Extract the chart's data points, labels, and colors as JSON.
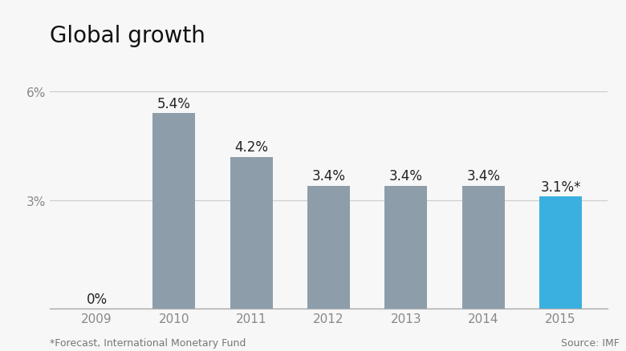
{
  "title": "Global growth",
  "categories": [
    "2009",
    "2010",
    "2011",
    "2012",
    "2013",
    "2014",
    "2015"
  ],
  "values": [
    0.0,
    5.4,
    4.2,
    3.4,
    3.4,
    3.4,
    3.1
  ],
  "labels": [
    "0%",
    "5.4%",
    "4.2%",
    "3.4%",
    "3.4%",
    "3.4%",
    "3.1%*"
  ],
  "bar_colors": [
    "#8d9eaa",
    "#8d9eaa",
    "#8d9eaa",
    "#8d9eaa",
    "#8d9eaa",
    "#8d9eaa",
    "#3ab0e0"
  ],
  "ylim": [
    0,
    6.8
  ],
  "yticks": [
    0,
    3,
    6
  ],
  "ytick_labels": [
    "",
    "3%",
    "6%"
  ],
  "footnote": "*Forecast, International Monetary Fund",
  "source": "Source: IMF",
  "background_color": "#f7f7f7",
  "title_fontsize": 20,
  "label_fontsize": 12,
  "tick_fontsize": 11,
  "footnote_fontsize": 9,
  "bar_width": 0.55
}
